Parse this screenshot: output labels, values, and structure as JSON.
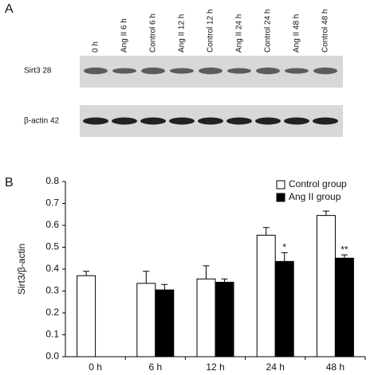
{
  "panel_a": {
    "label": "A",
    "lanes": [
      "0 h",
      "Ang II 6 h",
      "Control 6 h",
      "Ang II 12 h",
      "Control 12 h",
      "Ang II 24 h",
      "Control 24 h",
      "Ang II 48 h",
      "Control 48 h"
    ],
    "rows": [
      "Sirt3 28",
      "β-actin 42"
    ]
  },
  "chart_data": {
    "type": "bar",
    "panel_label": "B",
    "y_label": "Sirt3/β-actin",
    "categories": [
      "0 h",
      "6 h",
      "12 h",
      "24 h",
      "48 h"
    ],
    "series": [
      {
        "name": "Control group",
        "color": "#ffffff",
        "values": [
          0.37,
          0.335,
          0.355,
          0.555,
          0.645
        ],
        "errors": [
          0.02,
          0.055,
          0.06,
          0.035,
          0.02
        ]
      },
      {
        "name": "Ang II group",
        "color": "#000000",
        "values": [
          null,
          0.305,
          0.34,
          0.435,
          0.45
        ],
        "errors": [
          null,
          0.025,
          0.015,
          0.04,
          0.015
        ],
        "annotations": [
          null,
          null,
          null,
          "*",
          "**"
        ]
      }
    ],
    "ylim": [
      0,
      0.8
    ],
    "yticks": [
      {
        "value": 0,
        "label": "0.0"
      },
      0.1,
      0.2,
      0.3,
      0.4,
      0.5,
      0.6,
      0.7,
      0.8
    ],
    "legend": "top-right"
  }
}
